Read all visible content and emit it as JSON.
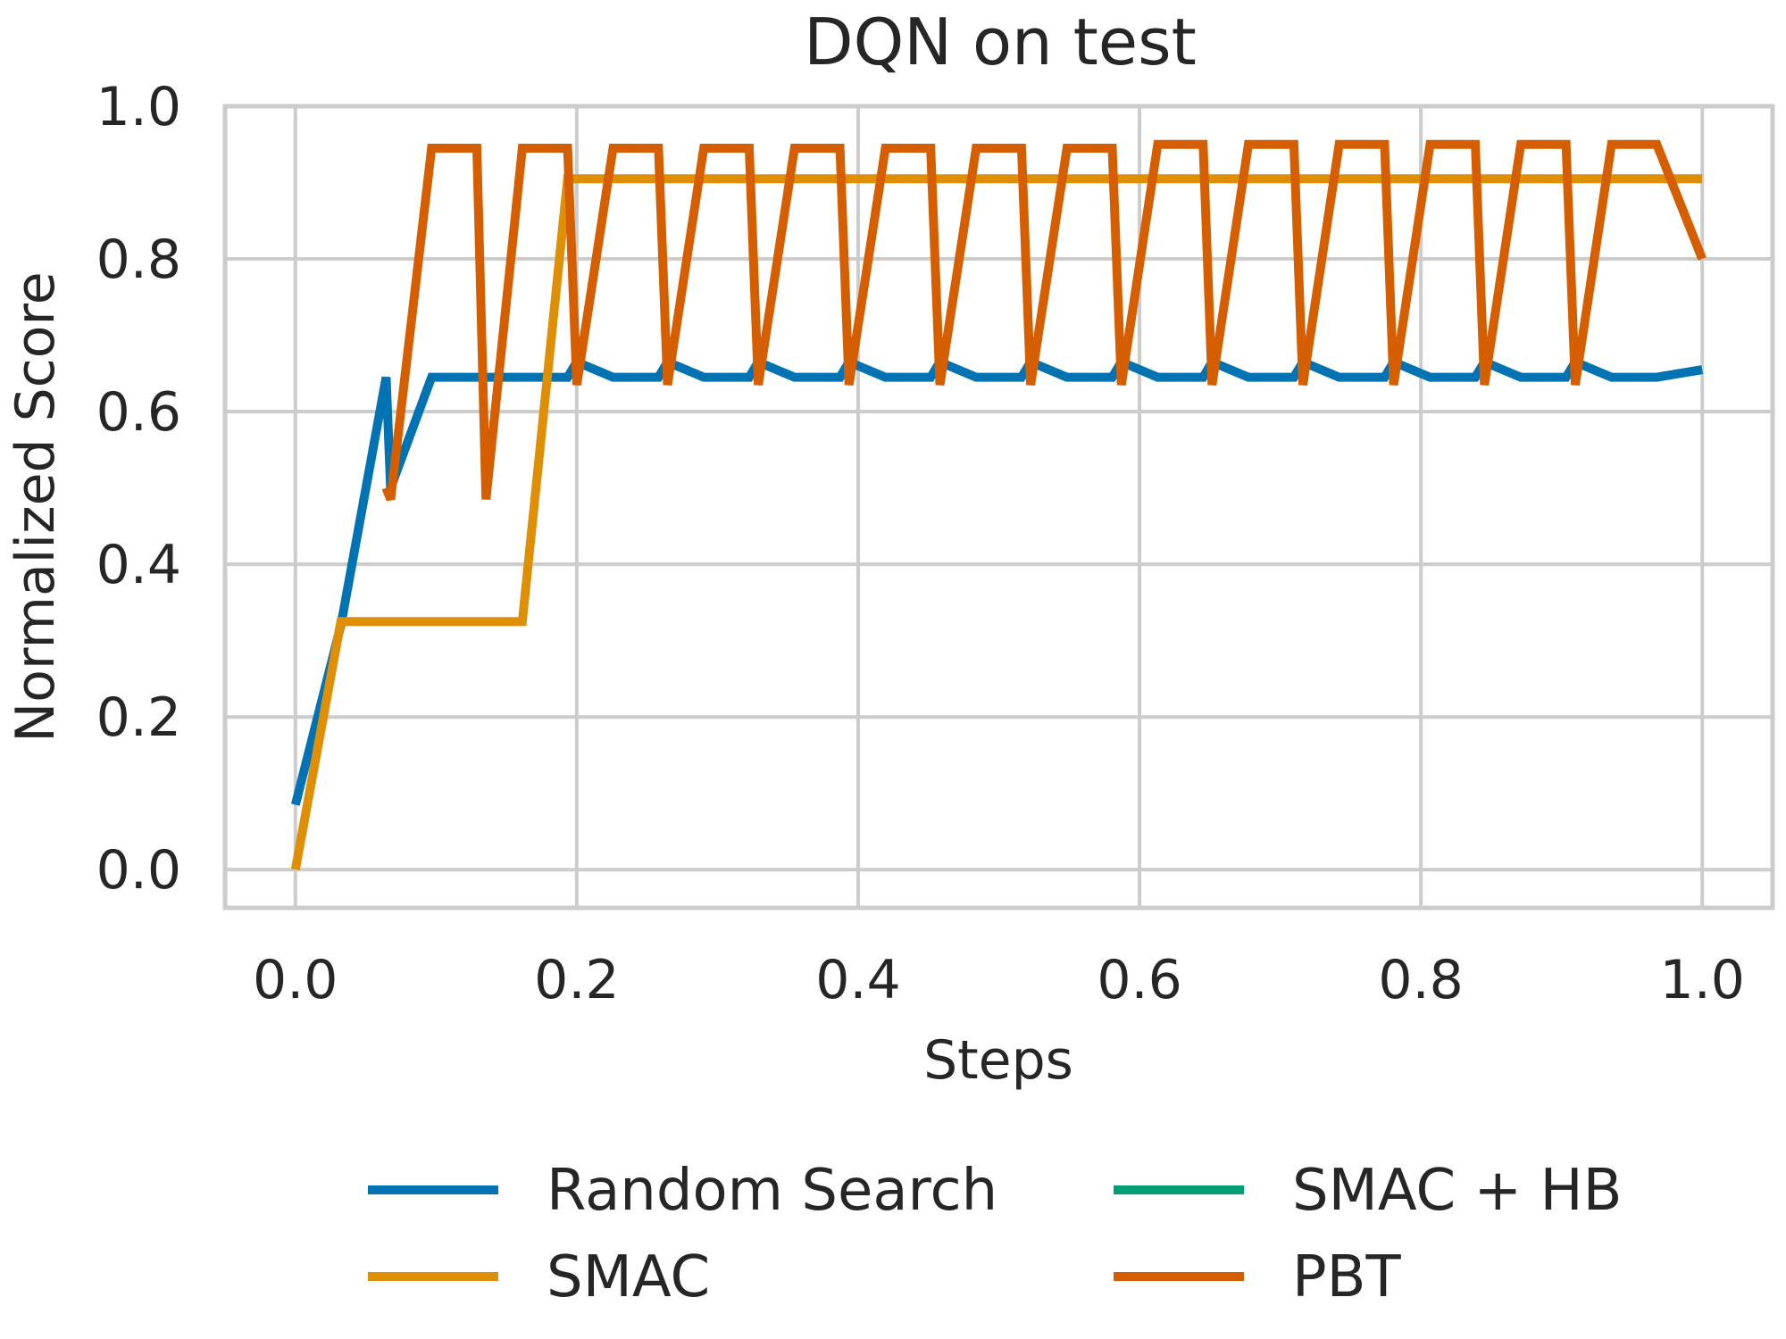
{
  "chart_data": {
    "type": "line",
    "title": "DQN on test",
    "xlabel": "Steps",
    "ylabel": "Normalized Score",
    "xlim": [
      -0.05,
      1.05
    ],
    "ylim": [
      -0.05,
      1.0
    ],
    "xticks": [
      "0.0",
      "0.2",
      "0.4",
      "0.6",
      "0.8",
      "1.0"
    ],
    "yticks": [
      "0.0",
      "0.2",
      "0.4",
      "0.6",
      "0.8",
      "1.0"
    ],
    "grid": true,
    "legend_position": "bottom-center",
    "series": [
      {
        "name": "Random Search",
        "color": "#0173b2",
        "x": [
          0.0,
          0.0323,
          0.0645,
          0.0677,
          0.0968,
          0.129,
          0.1613,
          0.1935,
          0.2,
          0.2258,
          0.2581,
          0.2645,
          0.2903,
          0.3226,
          0.329,
          0.3548,
          0.3871,
          0.3935,
          0.4194,
          0.4516,
          0.4581,
          0.4839,
          0.5161,
          0.5226,
          0.5484,
          0.5806,
          0.5871,
          0.6129,
          0.6452,
          0.6516,
          0.6774,
          0.7097,
          0.7161,
          0.7419,
          0.7742,
          0.7806,
          0.8065,
          0.8387,
          0.8452,
          0.871,
          0.9032,
          0.9097,
          0.9355,
          0.9677,
          1.0
        ],
        "y": [
          0.085,
          0.32,
          0.645,
          0.5,
          0.645,
          0.645,
          0.645,
          0.645,
          0.665,
          0.645,
          0.645,
          0.665,
          0.645,
          0.645,
          0.665,
          0.645,
          0.645,
          0.665,
          0.645,
          0.645,
          0.665,
          0.645,
          0.645,
          0.665,
          0.645,
          0.645,
          0.665,
          0.645,
          0.645,
          0.665,
          0.645,
          0.645,
          0.665,
          0.645,
          0.645,
          0.665,
          0.645,
          0.645,
          0.665,
          0.645,
          0.645,
          0.665,
          0.645,
          0.645,
          0.655
        ]
      },
      {
        "name": "SMAC",
        "color": "#de8f05",
        "x": [
          0.0,
          0.0323,
          0.0645,
          0.0968,
          0.129,
          0.1613,
          0.1935,
          0.2258,
          0.3,
          0.4,
          0.5,
          0.6,
          0.7,
          0.8,
          0.9,
          1.0
        ],
        "y": [
          0.0,
          0.325,
          0.325,
          0.325,
          0.325,
          0.325,
          0.905,
          0.905,
          0.905,
          0.905,
          0.905,
          0.905,
          0.905,
          0.905,
          0.905,
          0.905
        ]
      },
      {
        "name": "SMAC + HB",
        "color": "#029e73",
        "x": [],
        "y": []
      },
      {
        "name": "PBT",
        "color": "#d55e00",
        "x": [
          0.0645,
          0.0677,
          0.0968,
          0.129,
          0.1355,
          0.1613,
          0.1935,
          0.2,
          0.2258,
          0.2581,
          0.2645,
          0.2903,
          0.3226,
          0.329,
          0.3548,
          0.3871,
          0.3935,
          0.4194,
          0.4516,
          0.4581,
          0.4839,
          0.5161,
          0.5226,
          0.5484,
          0.5806,
          0.5871,
          0.6129,
          0.6452,
          0.6516,
          0.6774,
          0.7097,
          0.7161,
          0.7419,
          0.7742,
          0.7806,
          0.8065,
          0.8387,
          0.8452,
          0.871,
          0.9032,
          0.9097,
          0.9355,
          0.9677,
          1.0
        ],
        "y": [
          0.5,
          0.485,
          0.945,
          0.945,
          0.485,
          0.945,
          0.945,
          0.635,
          0.945,
          0.945,
          0.635,
          0.945,
          0.945,
          0.635,
          0.945,
          0.945,
          0.635,
          0.945,
          0.945,
          0.635,
          0.945,
          0.945,
          0.635,
          0.945,
          0.945,
          0.635,
          0.95,
          0.95,
          0.635,
          0.95,
          0.95,
          0.635,
          0.95,
          0.95,
          0.635,
          0.95,
          0.95,
          0.635,
          0.95,
          0.95,
          0.635,
          0.95,
          0.95,
          0.8
        ]
      }
    ]
  }
}
